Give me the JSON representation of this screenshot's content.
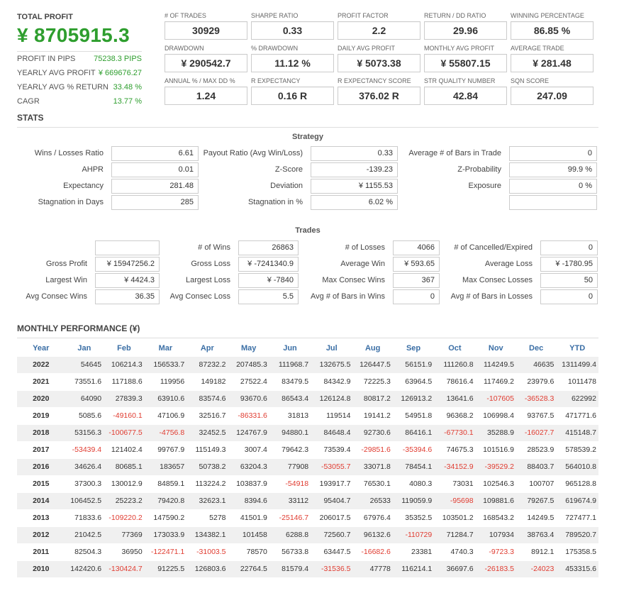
{
  "summary": {
    "total_profit_label": "TOTAL PROFIT",
    "total_profit_value": "¥ 8705915.3",
    "rows": [
      {
        "label": "PROFIT IN PIPS",
        "value": "75238.3 PIPS"
      },
      {
        "label": "YEARLY AVG PROFIT",
        "value": "¥ 669676.27"
      },
      {
        "label": "YEARLY AVG % RETURN",
        "value": "33.48 %"
      },
      {
        "label": "CAGR",
        "value": "13.77 %"
      }
    ]
  },
  "metrics": [
    {
      "label": "# OF TRADES",
      "value": "30929"
    },
    {
      "label": "SHARPE RATIO",
      "value": "0.33"
    },
    {
      "label": "PROFIT FACTOR",
      "value": "2.2"
    },
    {
      "label": "RETURN / DD RATIO",
      "value": "29.96"
    },
    {
      "label": "WINNING PERCENTAGE",
      "value": "86.85 %"
    },
    {
      "label": "DRAWDOWN",
      "value": "¥ 290542.7"
    },
    {
      "label": "% DRAWDOWN",
      "value": "11.12 %"
    },
    {
      "label": "DAILY AVG PROFIT",
      "value": "¥ 5073.38"
    },
    {
      "label": "MONTHLY AVG PROFIT",
      "value": "¥ 55807.15"
    },
    {
      "label": "AVERAGE TRADE",
      "value": "¥ 281.48"
    },
    {
      "label": "ANNUAL % / MAX DD %",
      "value": "1.24"
    },
    {
      "label": "R EXPECTANCY",
      "value": "0.16 R"
    },
    {
      "label": "R EXPECTANCY SCORE",
      "value": "376.02 R"
    },
    {
      "label": "STR QUALITY NUMBER",
      "value": "42.84"
    },
    {
      "label": "SQN SCORE",
      "value": "247.09"
    }
  ],
  "stats": {
    "title": "STATS",
    "strategy_title": "Strategy",
    "strategy": [
      {
        "label": "Wins / Losses Ratio",
        "value": "6.61"
      },
      {
        "label": "Payout Ratio (Avg Win/Loss)",
        "value": "0.33"
      },
      {
        "label": "Average # of Bars in Trade",
        "value": "0"
      },
      {
        "label": "AHPR",
        "value": "0.01"
      },
      {
        "label": "Z-Score",
        "value": "-139.23"
      },
      {
        "label": "Z-Probability",
        "value": "99.9 %"
      },
      {
        "label": "Expectancy",
        "value": "281.48"
      },
      {
        "label": "Deviation",
        "value": "¥ 1155.53"
      },
      {
        "label": "Exposure",
        "value": "0 %"
      },
      {
        "label": "Stagnation in Days",
        "value": "285"
      },
      {
        "label": "Stagnation in %",
        "value": "6.02 %"
      },
      {
        "label": "",
        "value": ""
      }
    ],
    "trades_title": "Trades",
    "trades": [
      {
        "label": "",
        "value": ""
      },
      {
        "label": "# of Wins",
        "value": "26863"
      },
      {
        "label": "# of Losses",
        "value": "4066"
      },
      {
        "label": "# of Cancelled/Expired",
        "value": "0"
      },
      {
        "label": "Gross Profit",
        "value": "¥ 15947256.2"
      },
      {
        "label": "Gross Loss",
        "value": "¥ -7241340.9"
      },
      {
        "label": "Average Win",
        "value": "¥ 593.65"
      },
      {
        "label": "Average Loss",
        "value": "¥ -1780.95"
      },
      {
        "label": "Largest Win",
        "value": "¥ 4424.3"
      },
      {
        "label": "Largest Loss",
        "value": "¥ -7840"
      },
      {
        "label": "Max Consec Wins",
        "value": "367"
      },
      {
        "label": "Max Consec Losses",
        "value": "50"
      },
      {
        "label": "Avg Consec Wins",
        "value": "36.35"
      },
      {
        "label": "Avg Consec Loss",
        "value": "5.5"
      },
      {
        "label": "Avg # of Bars in Wins",
        "value": "0"
      },
      {
        "label": "Avg # of Bars in Losses",
        "value": "0"
      }
    ]
  },
  "monthly": {
    "title": "MONTHLY PERFORMANCE (¥)",
    "headers": [
      "Year",
      "Jan",
      "Feb",
      "Mar",
      "Apr",
      "May",
      "Jun",
      "Jul",
      "Aug",
      "Sep",
      "Oct",
      "Nov",
      "Dec",
      "YTD"
    ],
    "negative_color": "#e03c31",
    "rows": [
      [
        "2022",
        "54645",
        "106214.3",
        "156533.7",
        "87232.2",
        "207485.3",
        "111968.7",
        "132675.5",
        "126447.5",
        "56151.9",
        "111260.8",
        "114249.5",
        "46635",
        "1311499.4"
      ],
      [
        "2021",
        "73551.6",
        "117188.6",
        "119956",
        "149182",
        "27522.4",
        "83479.5",
        "84342.9",
        "72225.3",
        "63964.5",
        "78616.4",
        "117469.2",
        "23979.6",
        "1011478"
      ],
      [
        "2020",
        "64090",
        "27839.3",
        "63910.6",
        "83574.6",
        "93670.6",
        "86543.4",
        "126124.8",
        "80817.2",
        "126913.2",
        "13641.6",
        "-107605",
        "-36528.3",
        "622992"
      ],
      [
        "2019",
        "5085.6",
        "-49160.1",
        "47106.9",
        "32516.7",
        "-86331.6",
        "31813",
        "119514",
        "19141.2",
        "54951.8",
        "96368.2",
        "106998.4",
        "93767.5",
        "471771.6"
      ],
      [
        "2018",
        "53156.3",
        "-100677.5",
        "-4756.8",
        "32452.5",
        "124767.9",
        "94880.1",
        "84648.4",
        "92730.6",
        "86416.1",
        "-67730.1",
        "35288.9",
        "-16027.7",
        "415148.7"
      ],
      [
        "2017",
        "-53439.4",
        "121402.4",
        "99767.9",
        "115149.3",
        "3007.4",
        "79642.3",
        "73539.4",
        "-29851.6",
        "-35394.6",
        "74675.3",
        "101516.9",
        "28523.9",
        "578539.2"
      ],
      [
        "2016",
        "34626.4",
        "80685.1",
        "183657",
        "50738.2",
        "63204.3",
        "77908",
        "-53055.7",
        "33071.8",
        "78454.1",
        "-34152.9",
        "-39529.2",
        "88403.7",
        "564010.8"
      ],
      [
        "2015",
        "37300.3",
        "130012.9",
        "84859.1",
        "113224.2",
        "103837.9",
        "-54918",
        "193917.7",
        "76530.1",
        "4080.3",
        "73031",
        "102546.3",
        "100707",
        "965128.8"
      ],
      [
        "2014",
        "106452.5",
        "25223.2",
        "79420.8",
        "32623.1",
        "8394.6",
        "33112",
        "95404.7",
        "26533",
        "119059.9",
        "-95698",
        "109881.6",
        "79267.5",
        "619674.9"
      ],
      [
        "2013",
        "71833.6",
        "-109220.2",
        "147590.2",
        "5278",
        "41501.9",
        "-25146.7",
        "206017.5",
        "67976.4",
        "35352.5",
        "103501.2",
        "168543.2",
        "14249.5",
        "727477.1"
      ],
      [
        "2012",
        "21042.5",
        "77369",
        "173033.9",
        "134382.1",
        "101458",
        "6288.8",
        "72560.7",
        "96132.6",
        "-110729",
        "71284.7",
        "107934",
        "38763.4",
        "789520.7"
      ],
      [
        "2011",
        "82504.3",
        "36950",
        "-122471.1",
        "-31003.5",
        "78570",
        "56733.8",
        "63447.5",
        "-16682.6",
        "23381",
        "4740.3",
        "-9723.3",
        "8912.1",
        "175358.5"
      ],
      [
        "2010",
        "142420.6",
        "-130424.7",
        "91225.5",
        "126803.6",
        "22764.5",
        "81579.4",
        "-31536.5",
        "47778",
        "116214.1",
        "36697.6",
        "-26183.5",
        "-24023",
        "453315.6"
      ]
    ]
  }
}
